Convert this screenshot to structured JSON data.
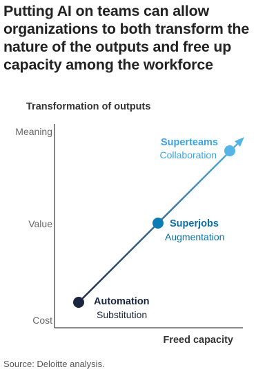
{
  "headline": "Putting AI on teams can allow organizations to both transform the nature of the outputs and free up capacity among the workforce",
  "y_axis": {
    "title": "Transformation of outputs",
    "ticks": [
      "Meaning",
      "Value",
      "Cost"
    ]
  },
  "x_axis": {
    "title": "Freed capacity"
  },
  "stages": [
    {
      "name": "Automation",
      "sub": "Substitution",
      "color": "#1a2640",
      "label_color": "#1a2640"
    },
    {
      "name": "Superjobs",
      "sub": "Augmentation",
      "color": "#0a7bb5",
      "label_color": "#0a6fa6"
    },
    {
      "name": "Superteams",
      "sub": "Collaboration",
      "color": "#56b4e6",
      "label_color": "#3aa3df"
    }
  ],
  "colors": {
    "axis": "#444444",
    "tick_text": "#666666",
    "line_start": "#1a2640",
    "line_end": "#56b4e6"
  },
  "source": "Source: Deloitte analysis."
}
